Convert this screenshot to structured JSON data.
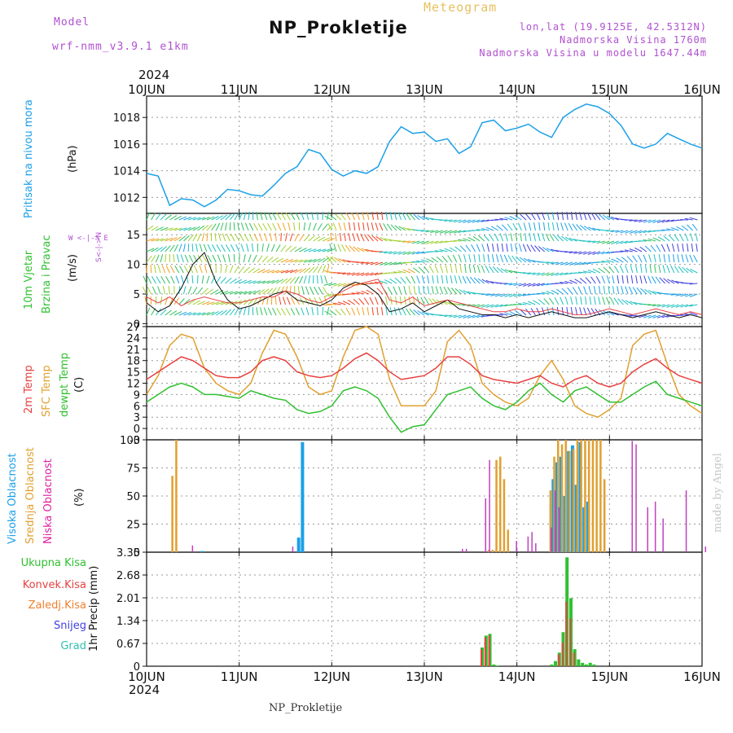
{
  "header": {
    "model_label": "Model",
    "model_name": "wrf-nmm_v3.9.1  e1km",
    "title": "NP_Prokletije",
    "meteogram": "Meteogram",
    "lonlat": "lon,lat (19.9125E, 42.5312N)",
    "altitude": "Nadmorska Visina 1760m",
    "model_altitude": "Nadmorska Visina u modelu 1647.44m"
  },
  "year_top": "2024",
  "year_bottom": "2024",
  "dates": [
    "10JUN",
    "11JUN",
    "12JUN",
    "13JUN",
    "14JUN",
    "15JUN",
    "16JUN"
  ],
  "footer_title": "NP_Prokletije",
  "made_by": "made by Angel",
  "colors": {
    "pressure": "#1ca0e8",
    "temp2m": "#e84040",
    "sfc": "#e0a030",
    "dew": "#30c030",
    "high": "#1ca0e8",
    "mid": "#e0a030",
    "low": "#c040c0",
    "total_precip": "#30c030",
    "conv_precip": "#e84040",
    "frz_precip": "#f08030",
    "snow": "#4040e0",
    "hail": "#30c0b0",
    "wind_line": "#111111",
    "wind_gust": "#e84040"
  },
  "panels": {
    "pressure": {
      "label": "Pritisak na nivou mora",
      "unit": "(hPa)"
    },
    "wind": {
      "label1": "10m Vjetar",
      "label2": "Brzina i Pravac",
      "unit": "(m/s)",
      "compass": "W <-|-> E",
      "compass2": "S<-|->N"
    },
    "temp": {
      "l1": "2m Temp",
      "l2": "SFC Temp",
      "l3": "dewpt Temp",
      "unit": "(C)"
    },
    "cloud": {
      "l1": "Visoka Oblacnost",
      "l2": "Srednja Oblacnost",
      "l3": "Niska Oblacnost",
      "unit": "(%)"
    },
    "precip": {
      "unit": "1hr Precip (mm)",
      "legend": [
        "Ukupna Kisa",
        "Konvek.Kisa",
        "Zaledj.Kisa",
        "Snijeg",
        "Grad"
      ]
    }
  },
  "chart_data": [
    {
      "type": "line",
      "title": "",
      "ylabel": "Pritisak na nivou mora (hPa)",
      "ylim": [
        1010.8,
        1019.6
      ],
      "yticks": [
        1012,
        1014,
        1016,
        1018
      ],
      "x_unit": "hours from 2024-06-10 00UTC",
      "x": [
        0,
        3,
        6,
        9,
        12,
        15,
        18,
        21,
        24,
        27,
        30,
        33,
        36,
        39,
        42,
        45,
        48,
        51,
        54,
        57,
        60,
        63,
        66,
        69,
        72,
        75,
        78,
        81,
        84,
        87,
        90,
        93,
        96,
        99,
        102,
        105,
        108,
        111,
        114,
        117,
        120,
        123,
        126,
        129,
        132,
        135,
        138,
        141,
        144
      ],
      "series": [
        {
          "name": "",
          "values": [
            1013.8,
            1013.6,
            1011.4,
            1011.9,
            1011.8,
            1011.3,
            1011.8,
            1012.6,
            1012.5,
            1012.2,
            1012.1,
            1012.9,
            1013.8,
            1014.3,
            1015.6,
            1015.3,
            1014.1,
            1013.6,
            1014.0,
            1013.8,
            1014.3,
            1016.2,
            1017.3,
            1016.8,
            1016.9,
            1016.2,
            1016.4,
            1015.3,
            1015.8,
            1017.6,
            1017.8,
            1017.0,
            1017.2,
            1017.5,
            1016.9,
            1016.5,
            1018.0,
            1018.6,
            1019.0,
            1018.8,
            1018.3,
            1017.4,
            1016.0,
            1015.7,
            1016.0,
            1016.8,
            1016.4,
            1016.0,
            1015.7
          ]
        }
      ]
    },
    {
      "type": "line",
      "title": "",
      "ylabel": "10m Vjetar Brzina i Pravac (m/s)",
      "ylim": [
        -0.5,
        18.6
      ],
      "yticks": [
        0,
        5,
        10,
        15
      ],
      "x_unit": "hours from 2024-06-10 00UTC",
      "x": [
        0,
        3,
        6,
        9,
        12,
        15,
        18,
        21,
        24,
        27,
        30,
        33,
        36,
        39,
        42,
        45,
        48,
        51,
        54,
        57,
        60,
        63,
        66,
        69,
        72,
        75,
        78,
        81,
        84,
        87,
        90,
        93,
        96,
        99,
        102,
        105,
        108,
        111,
        114,
        117,
        120,
        123,
        126,
        129,
        132,
        135,
        138,
        141,
        144
      ],
      "series": [
        {
          "name": "",
          "values": [
            3.5,
            2.0,
            3.0,
            6.0,
            10.0,
            12.0,
            7.0,
            4.0,
            2.5,
            3.0,
            4.0,
            5.0,
            5.5,
            4.0,
            3.5,
            3.0,
            4.0,
            6.0,
            7.0,
            6.5,
            5.0,
            2.0,
            2.5,
            3.5,
            2.0,
            3.0,
            4.0,
            2.5,
            2.0,
            1.5,
            1.5,
            1.0,
            1.5,
            1.0,
            1.5,
            2.0,
            1.5,
            1.0,
            1.0,
            1.5,
            2.0,
            1.5,
            1.0,
            1.5,
            2.0,
            1.5,
            1.0,
            1.5,
            1.0
          ]
        },
        {
          "name": "",
          "values": [
            4.5,
            3.5,
            4.5,
            3.0,
            4.0,
            4.5,
            4.0,
            3.5,
            3.5,
            4.0,
            4.5,
            4.5,
            5.5,
            5.0,
            4.0,
            3.5,
            4.5,
            5.5,
            6.5,
            7.0,
            7.5,
            4.0,
            3.5,
            4.5,
            3.0,
            3.5,
            4.0,
            3.5,
            3.0,
            2.5,
            2.0,
            2.0,
            2.5,
            2.0,
            2.0,
            2.5,
            2.0,
            1.5,
            1.5,
            2.0,
            2.5,
            2.0,
            1.5,
            2.0,
            2.5,
            2.0,
            1.5,
            2.0,
            1.5
          ]
        }
      ]
    },
    {
      "type": "line",
      "title": "",
      "ylabel": "Temp (C)",
      "ylim": [
        -3,
        27
      ],
      "yticks": [
        -3,
        0,
        3,
        6,
        9,
        12,
        15,
        18,
        21,
        24,
        27
      ],
      "x_unit": "hours from 2024-06-10 00UTC",
      "x": [
        0,
        3,
        6,
        9,
        12,
        15,
        18,
        21,
        24,
        27,
        30,
        33,
        36,
        39,
        42,
        45,
        48,
        51,
        54,
        57,
        60,
        63,
        66,
        69,
        72,
        75,
        78,
        81,
        84,
        87,
        90,
        93,
        96,
        99,
        102,
        105,
        108,
        111,
        114,
        117,
        120,
        123,
        126,
        129,
        132,
        135,
        138,
        141,
        144
      ],
      "series": [
        {
          "name": "2m Temp",
          "values": [
            13,
            15,
            17,
            19,
            18,
            16,
            14,
            13.5,
            13.5,
            15,
            18,
            19,
            18,
            15,
            14,
            13.5,
            14,
            16,
            18.5,
            20,
            18,
            15,
            13,
            13.5,
            14,
            16,
            19,
            19,
            17,
            14,
            13,
            12.5,
            12,
            13,
            14,
            12,
            11,
            13,
            14,
            12,
            11,
            12,
            15,
            17,
            18.5,
            16,
            14,
            13,
            12
          ]
        },
        {
          "name": "SFC Temp",
          "values": [
            9,
            14,
            22,
            25,
            24,
            16,
            12,
            10,
            9,
            12,
            20,
            26,
            25,
            19,
            11,
            9,
            10,
            19,
            26,
            27,
            25,
            13,
            6,
            6,
            6,
            10,
            23,
            26,
            22,
            12,
            9,
            7,
            6,
            8,
            14,
            18,
            13,
            6,
            4,
            3,
            5,
            8,
            22,
            25,
            26,
            17,
            9,
            6,
            4
          ]
        },
        {
          "name": "dewpt Temp",
          "values": [
            7,
            9,
            11,
            12,
            11,
            9,
            9,
            8.5,
            8,
            10,
            9,
            8,
            7.5,
            5,
            4,
            4.5,
            6,
            10,
            11,
            10,
            8,
            3,
            -1,
            0.5,
            1,
            5,
            9,
            10,
            11,
            8,
            6,
            5,
            7,
            10,
            12,
            9,
            7,
            10,
            11,
            9,
            7,
            7,
            9,
            11,
            12.5,
            9,
            8,
            7,
            6
          ]
        }
      ]
    },
    {
      "type": "bar",
      "title": "",
      "ylabel": "Oblacnost (%)",
      "ylim": [
        0,
        100
      ],
      "yticks": [
        0,
        25,
        50,
        75,
        100
      ],
      "x_unit": "hours from 2024-06-10 00UTC",
      "series": [
        {
          "name": "Visoka Oblacnost",
          "x": [
            14,
            39,
            40,
            105,
            106,
            107,
            108,
            109,
            110,
            111,
            112,
            113,
            114
          ],
          "values": [
            1,
            13,
            98,
            65,
            80,
            85,
            50,
            90,
            95,
            60,
            98,
            40,
            45
          ]
        },
        {
          "name": "Srednja Oblacnost",
          "x": [
            6,
            7,
            88,
            89,
            90,
            91,
            92,
            93,
            104,
            105,
            106,
            107,
            108,
            109,
            110,
            111,
            112,
            113,
            114,
            115,
            116,
            117,
            118
          ],
          "values": [
            68,
            100,
            2,
            2,
            82,
            85,
            65,
            20,
            55,
            85,
            100,
            96,
            100,
            90,
            92,
            100,
            100,
            100,
            100,
            100,
            100,
            100,
            65
          ]
        },
        {
          "name": "Niska Oblacnost",
          "x": [
            11,
            37,
            81,
            82,
            87,
            88,
            95,
            98,
            99,
            100,
            104,
            105,
            106,
            125,
            126,
            129,
            131,
            133,
            139,
            144
          ],
          "values": [
            6,
            5,
            3,
            3,
            48,
            82,
            10,
            14,
            18,
            8,
            22,
            55,
            40,
            99,
            96,
            40,
            45,
            30,
            55,
            5
          ]
        }
      ]
    },
    {
      "type": "bar",
      "title": "",
      "ylabel": "1hr Precip (mm)",
      "ylim": [
        0,
        3.35
      ],
      "yticks": [
        0,
        0.67,
        1.34,
        2.01,
        2.68,
        3.35
      ],
      "x_unit": "hours from 2024-06-10 00UTC",
      "series": [
        {
          "name": "Ukupna Kisa",
          "x": [
            87,
            88,
            89,
            90,
            91,
            105,
            106,
            107,
            108,
            109,
            110,
            111,
            112,
            113,
            114,
            115,
            116
          ],
          "values": [
            0.55,
            0.9,
            0.95,
            0.05,
            0.02,
            0.05,
            0.15,
            0.4,
            1.0,
            3.2,
            2.0,
            0.5,
            0.2,
            0.1,
            0.05,
            0.1,
            0.05
          ]
        },
        {
          "name": "Konvek.Kisa",
          "x": [
            87,
            88,
            89,
            107,
            108,
            109,
            110,
            111
          ],
          "values": [
            0.5,
            0.85,
            0.9,
            0.35,
            0.7,
            1.9,
            1.4,
            0.4
          ]
        }
      ]
    }
  ]
}
